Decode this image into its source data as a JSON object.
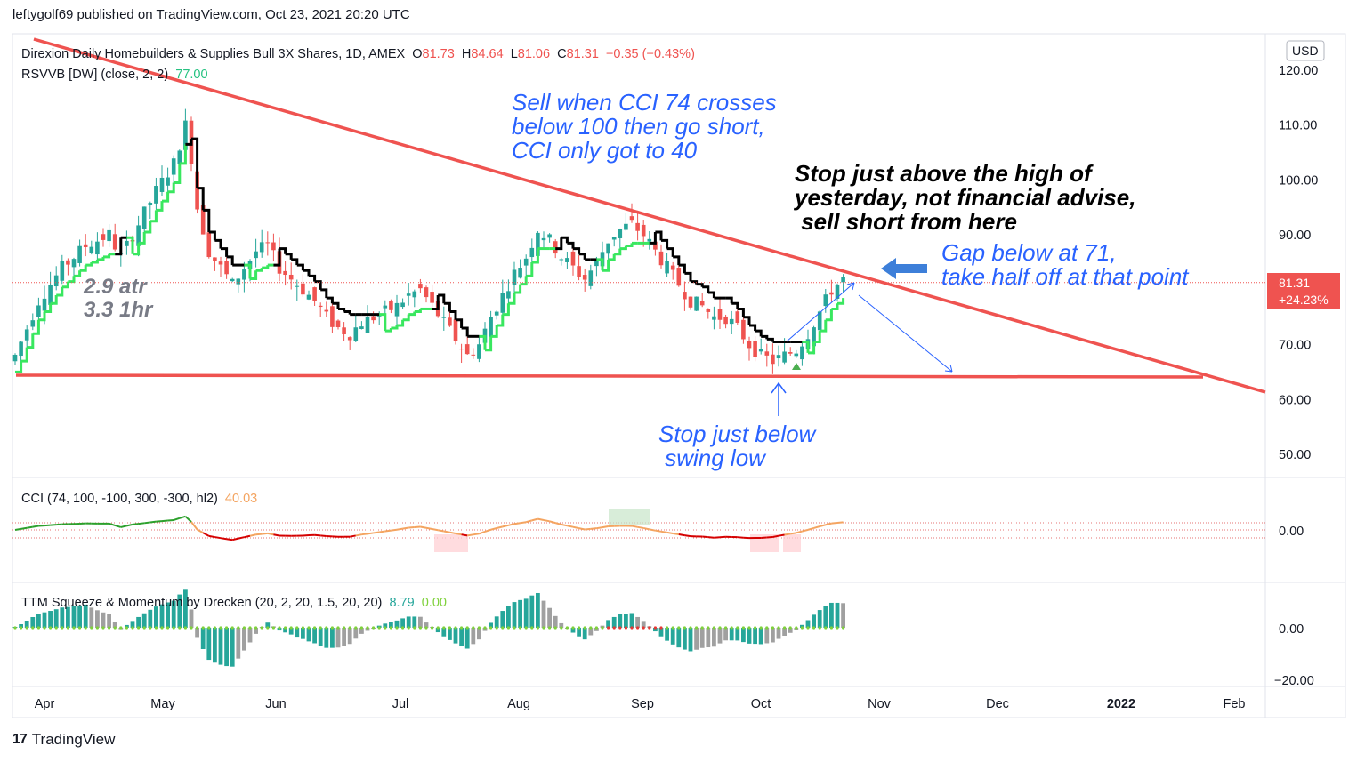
{
  "header": {
    "published": "leftygolf69 published on TradingView.com, Oct 23, 2021 20:20 UTC"
  },
  "footer": {
    "brand": "TradingView",
    "logo_icon": "tradingview-logo-icon"
  },
  "chart_data": {
    "type": "candlestick",
    "title": "Direxion Daily Homebuilders & Supplies Bull 3X Shares, 1D, AMEX",
    "ohlc": {
      "o": "81.73",
      "h": "84.64",
      "l": "81.06",
      "c": "81.31",
      "change": "−0.35 (−0.43%)"
    },
    "labels": {
      "o": "O",
      "h": "H",
      "l": "L",
      "c": "C"
    },
    "currency": "USD",
    "last_price": "81.31",
    "last_change_pct": "+24.23%",
    "x_ticks": [
      "Apr",
      "May",
      "Jun",
      "Jul",
      "Aug",
      "Sep",
      "Oct",
      "Nov",
      "Dec",
      "2022",
      "Feb"
    ],
    "price_ticks": [
      "120.00",
      "110.00",
      "100.00",
      "90.00",
      "70.00",
      "60.00",
      "50.00"
    ],
    "price_range": [
      45,
      125
    ],
    "indicator_rsvvb": {
      "label": "RSVVB [DW] (close, 2, 2)",
      "value": "77.00"
    },
    "indicator_cci": {
      "label": "CCI (74, 100, -100, 300, -300, hl2)",
      "value": "40.03",
      "tick": "0.00"
    },
    "indicator_ttm": {
      "label": "TTM Squeeze & Momentum by Drecken (20, 2, 20, 1.5, 20, 20)",
      "value1": "8.79",
      "value2": "0.00",
      "ticks": [
        "0.00",
        "−20.00"
      ]
    },
    "series": [
      {
        "points": [
          [
            0,
            68
          ],
          [
            4,
            78
          ],
          [
            8,
            84
          ],
          [
            12,
            88
          ],
          [
            16,
            90
          ],
          [
            18,
            86
          ],
          [
            21,
            92
          ],
          [
            24,
            98
          ],
          [
            27,
            103
          ],
          [
            29,
            110
          ],
          [
            30,
            104
          ],
          [
            31,
            95
          ],
          [
            33,
            87
          ],
          [
            35,
            84
          ],
          [
            37,
            81
          ],
          [
            39,
            84
          ],
          [
            41,
            87
          ],
          [
            43,
            88
          ],
          [
            45,
            84
          ],
          [
            47,
            82
          ],
          [
            49,
            80
          ],
          [
            51,
            78
          ],
          [
            53,
            75
          ],
          [
            55,
            73
          ],
          [
            57,
            72
          ],
          [
            59,
            74
          ],
          [
            61,
            75
          ],
          [
            63,
            76
          ],
          [
            65,
            77
          ],
          [
            67,
            79
          ],
          [
            69,
            80
          ],
          [
            71,
            77
          ],
          [
            73,
            74
          ],
          [
            75,
            71
          ],
          [
            77,
            68
          ],
          [
            79,
            70
          ],
          [
            81,
            75
          ],
          [
            83,
            79
          ],
          [
            85,
            83
          ],
          [
            87,
            86
          ],
          [
            89,
            91
          ],
          [
            91,
            89
          ],
          [
            93,
            86
          ],
          [
            95,
            84
          ],
          [
            97,
            82
          ],
          [
            99,
            85
          ],
          [
            101,
            89
          ],
          [
            103,
            91
          ],
          [
            105,
            92
          ],
          [
            107,
            90
          ],
          [
            109,
            87
          ],
          [
            111,
            84
          ],
          [
            113,
            81
          ],
          [
            115,
            78
          ],
          [
            117,
            77
          ],
          [
            119,
            75
          ],
          [
            121,
            75
          ],
          [
            123,
            73
          ],
          [
            125,
            70
          ],
          [
            127,
            68
          ],
          [
            129,
            67
          ],
          [
            131,
            68
          ],
          [
            133,
            69
          ],
          [
            135,
            72
          ],
          [
            137,
            76
          ],
          [
            139,
            80
          ],
          [
            141,
            82
          ]
        ]
      }
    ],
    "trendlines": [
      {
        "from": [
          0,
          127
        ],
        "to": [
          210,
          62
        ]
      },
      {
        "from": [
          0,
          65
        ],
        "to": [
          200,
          65
        ]
      }
    ],
    "annotations": [
      {
        "text": "Sell when CCI 74 crosses",
        "color": "#2962ff"
      },
      {
        "text": "below 100 then go short,",
        "color": "#2962ff"
      },
      {
        "text": "CCI only got to 40",
        "color": "#2962ff"
      },
      {
        "text": "Stop just above the high of",
        "color": "#000000"
      },
      {
        "text": "yesterday, not financial advise,",
        "color": "#000000"
      },
      {
        "text": " sell short from here",
        "color": "#000000"
      },
      {
        "text": "Gap below at 71,",
        "color": "#2962ff"
      },
      {
        "text": "take half off at that point",
        "color": "#2962ff"
      },
      {
        "text": "Stop just below",
        "color": "#2962ff"
      },
      {
        "text": " swing low",
        "color": "#2962ff"
      },
      {
        "text": "2.9 atr",
        "color": "#787b86"
      },
      {
        "text": "3.3 1hr",
        "color": "#787b86"
      }
    ],
    "colors": {
      "up": "#26a69a",
      "down": "#ef5350",
      "trend": "#ef5350",
      "supertrend_up": "#39e75f",
      "supertrend_down": "#000000",
      "annotation_blue": "#2962ff",
      "cci_up": "#2ca02c",
      "cci_mid": "#f4a460",
      "cci_down": "#d50000",
      "ttm_up": "#26a69a",
      "ttm_grey": "#a0a0a0"
    }
  }
}
